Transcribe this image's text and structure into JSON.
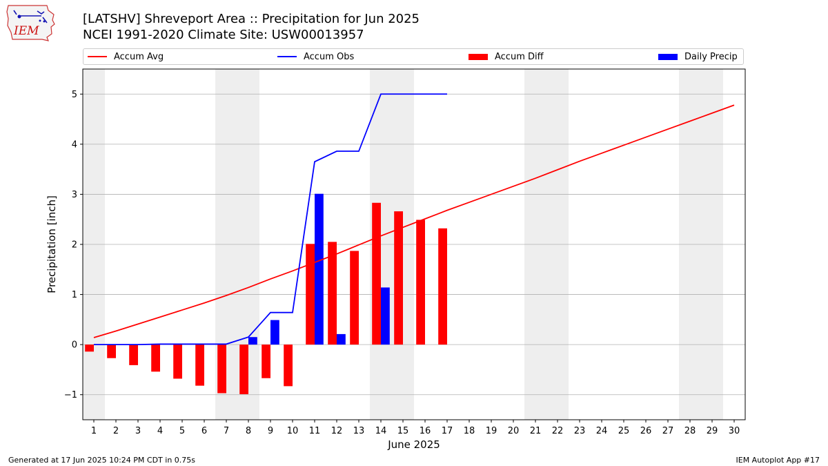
{
  "header": {
    "title": "[LATSHV] Shreveport Area :: Precipitation for Jun 2025",
    "subtitle": "NCEI 1991-2020 Climate Site: USW00013957"
  },
  "logo": {
    "text": "IEM",
    "icon": "iem-iowa-logo"
  },
  "footer": {
    "generated": "Generated at 17 Jun 2025 10:24 PM CDT in 0.75s",
    "app": "IEM Autoplot App #17"
  },
  "colors": {
    "accum_avg": "#ff0000",
    "accum_obs": "#0000ff",
    "accum_diff": "#ff0000",
    "daily_precip": "#0000ff",
    "weekend_shade": "#eeeeee",
    "grid": "#b0b0b0"
  },
  "legend": [
    {
      "label": "Accum Avg",
      "kind": "line",
      "color": "#ff0000"
    },
    {
      "label": "Accum Obs",
      "kind": "line",
      "color": "#0000ff"
    },
    {
      "label": "Accum Diff",
      "kind": "patch",
      "color": "#ff0000"
    },
    {
      "label": "Daily Precip",
      "kind": "patch",
      "color": "#0000ff"
    }
  ],
  "chart_data": {
    "type": "bar",
    "xlabel": "June 2025",
    "ylabel": "Precipitation [inch]",
    "xlim": [
      0.5,
      30.5
    ],
    "ylim": [
      -1.5,
      5.5
    ],
    "yticks": [
      -1,
      0,
      1,
      2,
      3,
      4,
      5
    ],
    "ytick_labels": [
      "−1",
      "0",
      "1",
      "2",
      "3",
      "4",
      "5"
    ],
    "xticks": [
      1,
      2,
      3,
      4,
      5,
      6,
      7,
      8,
      9,
      10,
      11,
      12,
      13,
      14,
      15,
      16,
      17,
      18,
      19,
      20,
      21,
      22,
      23,
      24,
      25,
      26,
      27,
      28,
      29,
      30
    ],
    "grid": "y",
    "legend_position": "top",
    "weekend_shading": [
      [
        1,
        1
      ],
      [
        7,
        8
      ],
      [
        14,
        15
      ],
      [
        21,
        22
      ],
      [
        28,
        29
      ]
    ],
    "series": [
      {
        "name": "Accum Avg",
        "kind": "line",
        "x": [
          1,
          2,
          3,
          4,
          5,
          6,
          7,
          8,
          9,
          10,
          11,
          12,
          13,
          14,
          15,
          16,
          17,
          18,
          19,
          20,
          21,
          22,
          23,
          24,
          25,
          26,
          27,
          28,
          29,
          30
        ],
        "values": [
          0.14,
          0.27,
          0.41,
          0.55,
          0.69,
          0.83,
          0.98,
          1.14,
          1.31,
          1.47,
          1.64,
          1.81,
          1.99,
          2.17,
          2.34,
          2.51,
          2.68,
          2.84,
          3.0,
          3.16,
          3.32,
          3.49,
          3.66,
          3.82,
          3.98,
          4.14,
          4.3,
          4.46,
          4.62,
          4.78
        ]
      },
      {
        "name": "Accum Obs",
        "kind": "line",
        "x": [
          1,
          2,
          3,
          4,
          5,
          6,
          7,
          8,
          9,
          10,
          11,
          12,
          13,
          14,
          15,
          16,
          17
        ],
        "values": [
          0.0,
          0.0,
          0.0,
          0.01,
          0.01,
          0.01,
          0.01,
          0.15,
          0.64,
          0.64,
          3.65,
          3.86,
          3.86,
          5.0,
          5.0,
          5.0,
          5.0
        ]
      },
      {
        "name": "Accum Diff",
        "kind": "bar",
        "x": [
          1,
          2,
          3,
          4,
          5,
          6,
          7,
          8,
          9,
          10,
          11,
          12,
          13,
          14,
          15,
          16,
          17
        ],
        "values": [
          -0.14,
          -0.27,
          -0.41,
          -0.54,
          -0.68,
          -0.82,
          -0.97,
          -0.99,
          -0.67,
          -0.83,
          2.01,
          2.05,
          1.87,
          2.83,
          2.66,
          2.49,
          2.32
        ]
      },
      {
        "name": "Daily Precip",
        "kind": "bar",
        "x": [
          8,
          9,
          11,
          12,
          14
        ],
        "values": [
          0.15,
          0.49,
          3.01,
          0.21,
          1.14
        ]
      }
    ]
  }
}
